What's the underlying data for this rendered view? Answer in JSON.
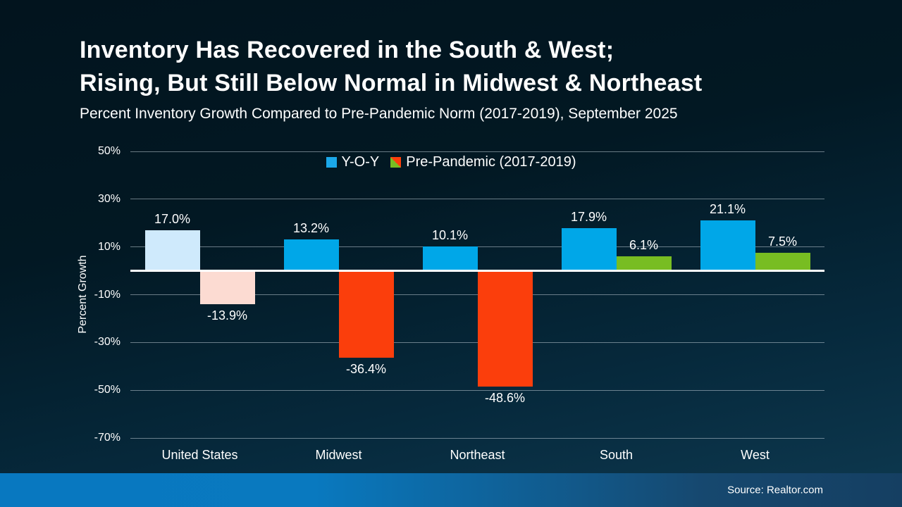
{
  "slide": {
    "title_line1": "Inventory Has Recovered in the South & West;",
    "title_line2": "Rising, But Still Below Normal in Midwest & Northeast",
    "subtitle": "Percent Inventory Growth Compared to Pre-Pandemic Norm (2017-2019), September 2025",
    "source": "Source: Realtor.com"
  },
  "colors": {
    "background_top": "#02141e",
    "background_bottom": "#0e3950",
    "bar_blue": "#00a7e8",
    "bar_blue_muted": "#cfeafc",
    "bar_red": "#fb3e0c",
    "bar_red_muted": "#fcdbd2",
    "bar_green": "#78bd22",
    "gridline": "#8b97a1",
    "zero_line": "#ffffff",
    "footer_left": "#0878c0",
    "footer_right": "#153f62",
    "legend_blue": "#1ba8e9"
  },
  "chart_data": {
    "type": "bar",
    "title": "Inventory Has Recovered in the South & West; Rising, But Still Below Normal in Midwest & Northeast",
    "subtitle": "Percent Inventory Growth Compared to Pre-Pandemic Norm (2017-2019), September 2025",
    "ylabel": "Percent Growth",
    "xlabel": "",
    "ylim": [
      -70,
      50
    ],
    "grid": true,
    "gridline_values": [
      50,
      30,
      10,
      -10,
      -30,
      -50,
      -70
    ],
    "tick_labels": [
      "50%",
      "30%",
      "10%",
      "-10%",
      "-30%",
      "-50%",
      "-70%"
    ],
    "legend_position": "top-center",
    "legend": [
      {
        "label": "Y-O-Y",
        "swatch": "solid-blue"
      },
      {
        "label": "Pre-Pandemic (2017-2019)",
        "swatch": "split-red-green"
      }
    ],
    "categories": [
      "United States",
      "Midwest",
      "Northeast",
      "South",
      "West"
    ],
    "series": [
      {
        "name": "Y-O-Y",
        "values": [
          17.0,
          13.2,
          10.1,
          17.9,
          21.1
        ],
        "labels": [
          "17.0%",
          "13.2%",
          "10.1%",
          "17.9%",
          "21.1%"
        ],
        "colors": [
          "#cfeafc",
          "#00a7e8",
          "#00a7e8",
          "#00a7e8",
          "#00a7e8"
        ]
      },
      {
        "name": "Pre-Pandemic (2017-2019)",
        "values": [
          -13.9,
          -36.4,
          -48.6,
          6.1,
          7.5
        ],
        "labels": [
          "-13.9%",
          "-36.4%",
          "-48.6%",
          "6.1%",
          "7.5%"
        ],
        "colors": [
          "#fcdbd2",
          "#fb3e0c",
          "#fb3e0c",
          "#78bd22",
          "#78bd22"
        ]
      }
    ]
  }
}
